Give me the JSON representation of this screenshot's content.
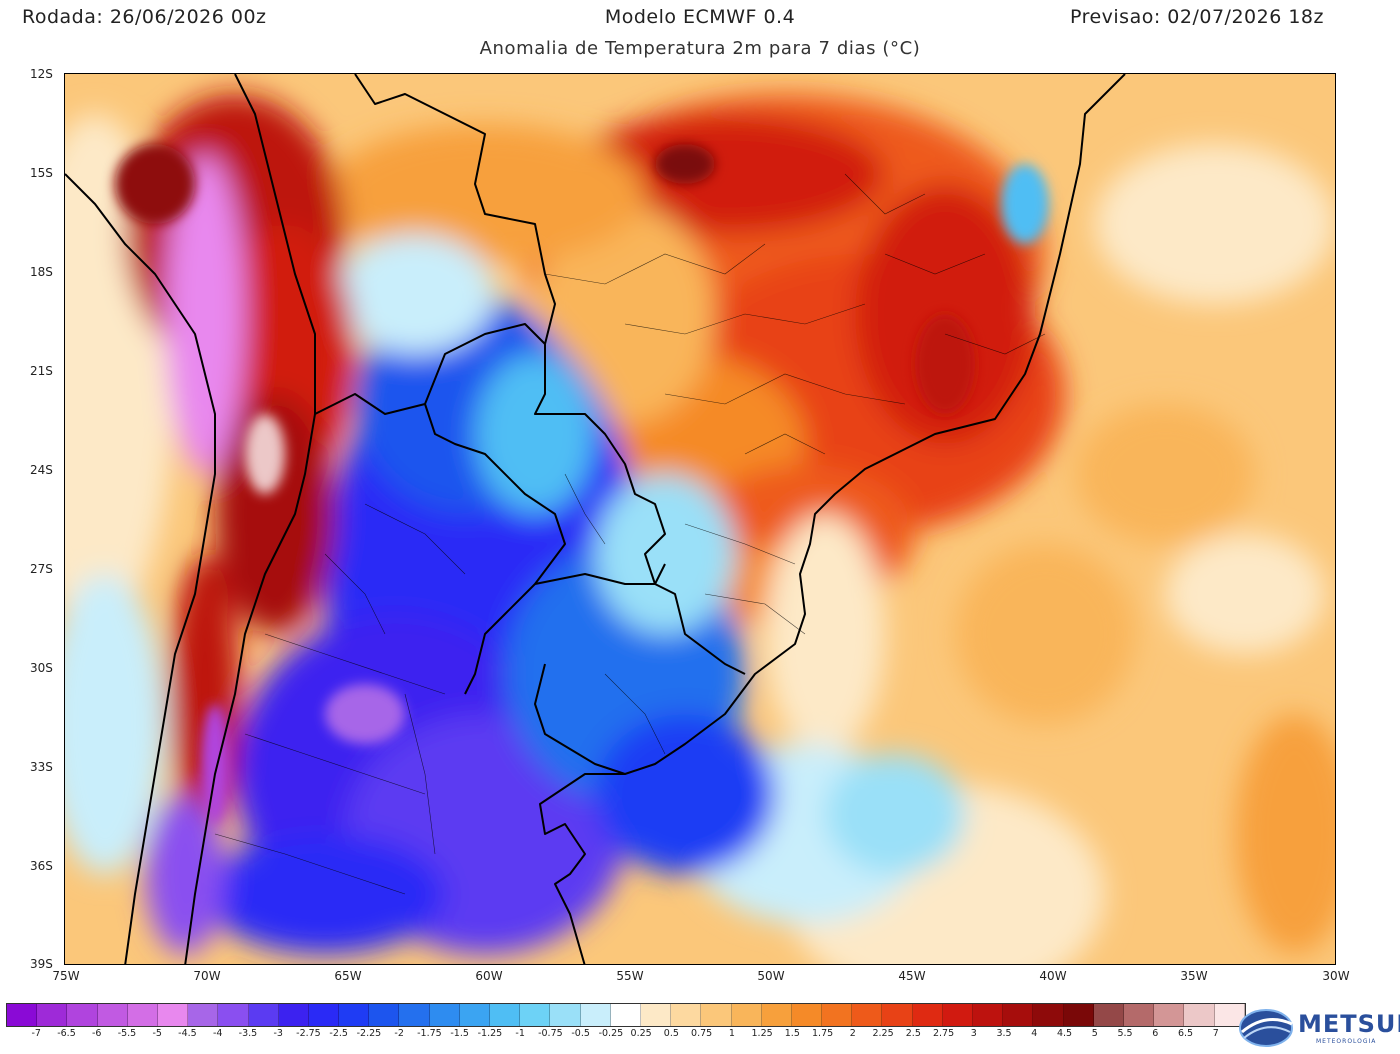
{
  "header": {
    "left": "Rodada: 26/06/2026 00z",
    "center": "Modelo ECMWF 0.4",
    "right": "Previsao: 02/07/2026 18z",
    "subtitle": "Anomalia de Temperatura 2m para 7 dias (°C)"
  },
  "map": {
    "lat_range": [
      -39,
      -12
    ],
    "lon_range": [
      -75,
      -30
    ],
    "lat_labels": [
      "12S",
      "15S",
      "18S",
      "21S",
      "24S",
      "27S",
      "30S",
      "33S",
      "36S",
      "39S"
    ],
    "lon_labels": [
      "75W",
      "70W",
      "65W",
      "60W",
      "55W",
      "50W",
      "45W",
      "40W",
      "35W",
      "30W"
    ],
    "features": [
      "warm anomaly over central and southeastern Brazil",
      "cold anomaly over Argentina, Paraguay, Uruguay and southern Brazil",
      "strong warm anomaly along the Andes",
      "cold anomaly over the Andes of central Chile",
      "mild warm anomaly over the South Atlantic"
    ]
  },
  "colorbar": {
    "labels": [
      "-7",
      "-6.5",
      "-6",
      "-5.5",
      "-5",
      "-4.5",
      "-4",
      "-3.5",
      "-3",
      "-2.75",
      "-2.5",
      "-2.25",
      "-2",
      "-1.75",
      "-1.5",
      "-1.25",
      "-1",
      "-0.75",
      "-0.5",
      "-0.25",
      "0.25",
      "0.5",
      "0.75",
      "1",
      "1.25",
      "1.5",
      "1.75",
      "2",
      "2.25",
      "2.5",
      "2.75",
      "3",
      "3.5",
      "4",
      "4.5",
      "5",
      "5.5",
      "6",
      "6.5",
      "7"
    ],
    "colors": [
      "#8a0ad6",
      "#9e2ad8",
      "#b044de",
      "#c15ae2",
      "#d36ee6",
      "#e888ee",
      "#a766e8",
      "#8a4ff0",
      "#5b3bf2",
      "#3c22f0",
      "#2a2af6",
      "#1f3cf4",
      "#1d55ee",
      "#2470ee",
      "#2e8cf0",
      "#3ba4f2",
      "#4fbef4",
      "#6dd2f6",
      "#9ae0f8",
      "#c9eefb",
      "#ffffff",
      "#fde9c7",
      "#fdd9a0",
      "#fbc77a",
      "#f9b55a",
      "#f7a03c",
      "#f58a28",
      "#f27320",
      "#ee5a1a",
      "#e84216",
      "#df2a12",
      "#d11a10",
      "#bd120e",
      "#a60d0c",
      "#8e0a0a",
      "#7a0808",
      "#944848",
      "#b46a6a",
      "#d39696",
      "#ecc8c8",
      "#fbe6e6"
    ]
  },
  "logo": {
    "name": "METSUL",
    "sub": "METEOROLOGIA"
  }
}
